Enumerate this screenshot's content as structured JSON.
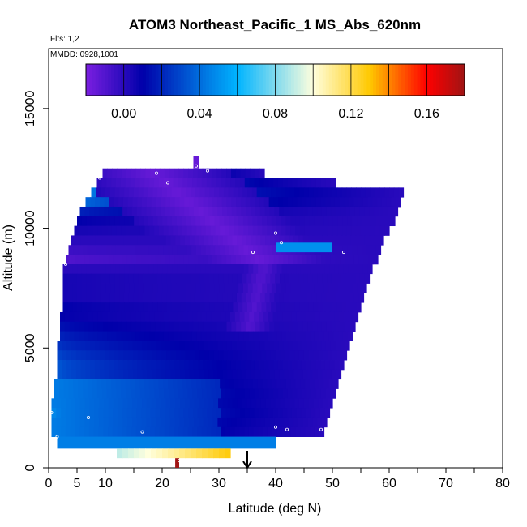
{
  "chart_data": {
    "type": "heatmap",
    "title": "ATOM3 Northeast_Pacific_1 MS_Abs_620nm",
    "flights_label": "Flts: 1,2",
    "dates_label": "MMDD: 0928,1001",
    "xlabel": "Latitude (deg N)",
    "ylabel": "Altitude (m)",
    "xlim": [
      0,
      80
    ],
    "ylim": [
      0,
      17500
    ],
    "x_ticks": [
      0,
      5,
      10,
      20,
      30,
      40,
      50,
      60,
      70,
      80
    ],
    "y_ticks": [
      0,
      5000,
      10000,
      15000
    ],
    "colorbar": {
      "range": [
        -0.02,
        0.18
      ],
      "ticks": [
        "0.00",
        "0.04",
        "0.08",
        "0.12",
        "0.16"
      ],
      "tick_values": [
        0.0,
        0.04,
        0.08,
        0.12,
        0.16
      ],
      "stops": [
        "#7b1fe0",
        "#0000aa",
        "#00b4ff",
        "#ffffdd",
        "#ffc800",
        "#ff0000",
        "#a01414"
      ]
    },
    "arrow_latitude": 35,
    "rows": [
      {
        "alt": [
          12100,
          12500
        ],
        "lat": [
          9.5,
          38
        ],
        "left": 0.06,
        "right": 0.0
      },
      {
        "alt": [
          11700,
          12100
        ],
        "lat": [
          8.5,
          50.5
        ],
        "left": 0.05,
        "right": 0.0
      },
      {
        "alt": [
          11300,
          11700
        ],
        "lat": [
          7.5,
          62.5
        ],
        "left": 0.045,
        "right": 0.0
      },
      {
        "alt": [
          10900,
          11300
        ],
        "lat": [
          6.5,
          62
        ],
        "left": 0.04,
        "right": 0.0
      },
      {
        "alt": [
          10500,
          10900
        ],
        "lat": [
          5.5,
          61.5
        ],
        "left": 0.02,
        "right": 0.0
      },
      {
        "alt": [
          10100,
          10500
        ],
        "lat": [
          5,
          61
        ],
        "left": 0.01,
        "right": 0.0
      },
      {
        "alt": [
          9700,
          10100
        ],
        "lat": [
          4.5,
          60
        ],
        "left": 0.005,
        "right": 0.0
      },
      {
        "alt": [
          9300,
          9700
        ],
        "lat": [
          4,
          59
        ],
        "left": 0.0,
        "right": 0.0
      },
      {
        "alt": [
          8900,
          9300
        ],
        "lat": [
          3.5,
          58.5
        ],
        "left": -0.005,
        "right": 0.0
      },
      {
        "alt": [
          8500,
          8900
        ],
        "lat": [
          3,
          58
        ],
        "left": -0.01,
        "right": 0.0
      },
      {
        "alt": [
          8100,
          8500
        ],
        "lat": [
          2.5,
          57
        ],
        "left": 0.0,
        "right": 0.0
      },
      {
        "alt": [
          7700,
          8100
        ],
        "lat": [
          2.5,
          56.5
        ],
        "left": 0.005,
        "right": 0.0
      },
      {
        "alt": [
          7300,
          7700
        ],
        "lat": [
          2.5,
          56
        ],
        "left": 0.005,
        "right": 0.0
      },
      {
        "alt": [
          6900,
          7300
        ],
        "lat": [
          2.5,
          55.5
        ],
        "left": 0.005,
        "right": 0.0
      },
      {
        "alt": [
          6500,
          6900
        ],
        "lat": [
          2.5,
          55
        ],
        "left": 0.01,
        "right": 0.0
      },
      {
        "alt": [
          6100,
          6500
        ],
        "lat": [
          2,
          54.5
        ],
        "left": 0.01,
        "right": 0.0
      },
      {
        "alt": [
          5700,
          6100
        ],
        "lat": [
          2,
          54
        ],
        "left": 0.015,
        "right": 0.0
      },
      {
        "alt": [
          5300,
          5700
        ],
        "lat": [
          2,
          53.5
        ],
        "left": 0.02,
        "right": 0.0
      },
      {
        "alt": [
          4900,
          5300
        ],
        "lat": [
          1.5,
          53
        ],
        "left": 0.025,
        "right": 0.0
      },
      {
        "alt": [
          4500,
          4900
        ],
        "lat": [
          1.5,
          52.5
        ],
        "left": 0.03,
        "right": 0.0
      },
      {
        "alt": [
          4100,
          4500
        ],
        "lat": [
          1.5,
          52
        ],
        "left": 0.035,
        "right": 0.0
      },
      {
        "alt": [
          3700,
          4100
        ],
        "lat": [
          1.5,
          51.5
        ],
        "left": 0.035,
        "right": 0.0
      },
      {
        "alt": [
          3300,
          3700
        ],
        "lat": [
          1,
          51
        ],
        "left": 0.04,
        "right": 0.0
      },
      {
        "alt": [
          2900,
          3300
        ],
        "lat": [
          1,
          50.5
        ],
        "left": 0.045,
        "right": 0.0
      },
      {
        "alt": [
          2500,
          2900
        ],
        "lat": [
          0.5,
          50
        ],
        "left": 0.045,
        "right": 0.0
      },
      {
        "alt": [
          2100,
          2500
        ],
        "lat": [
          0.5,
          49.5
        ],
        "left": 0.05,
        "right": 0.0
      },
      {
        "alt": [
          1700,
          2100
        ],
        "lat": [
          0.5,
          49
        ],
        "left": 0.045,
        "right": 0.0
      },
      {
        "alt": [
          1300,
          1700
        ],
        "lat": [
          0.5,
          48.5
        ],
        "left": 0.04,
        "right": 0.0
      }
    ],
    "extra_cells": [
      {
        "alt": [
          12500,
          13000
        ],
        "lat": [
          25.5,
          26.5
        ],
        "value": -0.015
      },
      {
        "alt": [
          9000,
          9400
        ],
        "lat": [
          40,
          50
        ],
        "value": 0.05
      },
      {
        "alt": [
          800,
          1300
        ],
        "lat": [
          1.5,
          40
        ],
        "value": 0.045
      },
      {
        "alt": [
          400,
          800
        ],
        "lat": [
          12,
          32
        ],
        "value": 0.12
      },
      {
        "alt": [
          0,
          400
        ],
        "lat": [
          22.3,
          23.0
        ],
        "value": 0.18
      }
    ],
    "sample_points": [
      [
        26,
        12600
      ],
      [
        28,
        12400
      ],
      [
        19,
        12300
      ],
      [
        21,
        11900
      ],
      [
        9,
        12100
      ],
      [
        63,
        11200
      ],
      [
        40,
        9800
      ],
      [
        41,
        9400
      ],
      [
        36,
        9000
      ],
      [
        52,
        9000
      ],
      [
        3,
        8500
      ],
      [
        0.5,
        2300
      ],
      [
        7,
        2100
      ],
      [
        1.5,
        1300
      ],
      [
        16.5,
        1500
      ],
      [
        40,
        1700
      ],
      [
        42,
        1600
      ],
      [
        48,
        1600
      ],
      [
        23,
        300
      ]
    ]
  }
}
